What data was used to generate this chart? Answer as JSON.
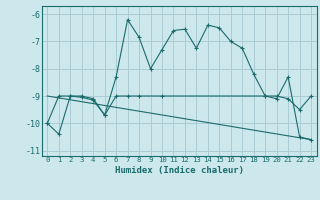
{
  "xlabel": "Humidex (Indice chaleur)",
  "bg_color": "#cce8ec",
  "grid_color": "#aaccd4",
  "line_color": "#1a6b6b",
  "xlim": [
    -0.5,
    23.5
  ],
  "ylim": [
    -11.2,
    -5.7
  ],
  "yticks": [
    -11,
    -10,
    -9,
    -8,
    -7,
    -6
  ],
  "xticks": [
    0,
    1,
    2,
    3,
    4,
    5,
    6,
    7,
    8,
    9,
    10,
    11,
    12,
    13,
    14,
    15,
    16,
    17,
    18,
    19,
    20,
    21,
    22,
    23
  ],
  "series1_x": [
    0,
    1,
    2,
    3,
    4,
    5,
    6,
    7,
    8,
    9,
    10,
    11,
    12,
    13,
    14,
    15,
    16,
    17,
    18,
    19,
    20,
    21,
    22,
    23
  ],
  "series1_y": [
    -10.0,
    -10.4,
    -9.0,
    -9.05,
    -9.15,
    -9.7,
    -8.3,
    -6.2,
    -6.85,
    -8.0,
    -7.3,
    -6.6,
    -6.55,
    -7.25,
    -6.4,
    -6.5,
    -7.0,
    -7.25,
    -8.2,
    -9.0,
    -9.1,
    -8.3,
    -10.5,
    -10.6
  ],
  "series2_x": [
    0,
    1,
    2,
    3,
    4,
    5,
    6,
    7,
    8,
    10,
    19,
    20,
    21,
    22,
    23
  ],
  "series2_y": [
    -10.0,
    -9.0,
    -9.0,
    -9.0,
    -9.1,
    -9.7,
    -9.0,
    -9.0,
    -9.0,
    -9.0,
    -9.0,
    -9.0,
    -9.1,
    -9.5,
    -9.0
  ],
  "series3_x": [
    0,
    23
  ],
  "series3_y": [
    -9.0,
    -10.6
  ]
}
